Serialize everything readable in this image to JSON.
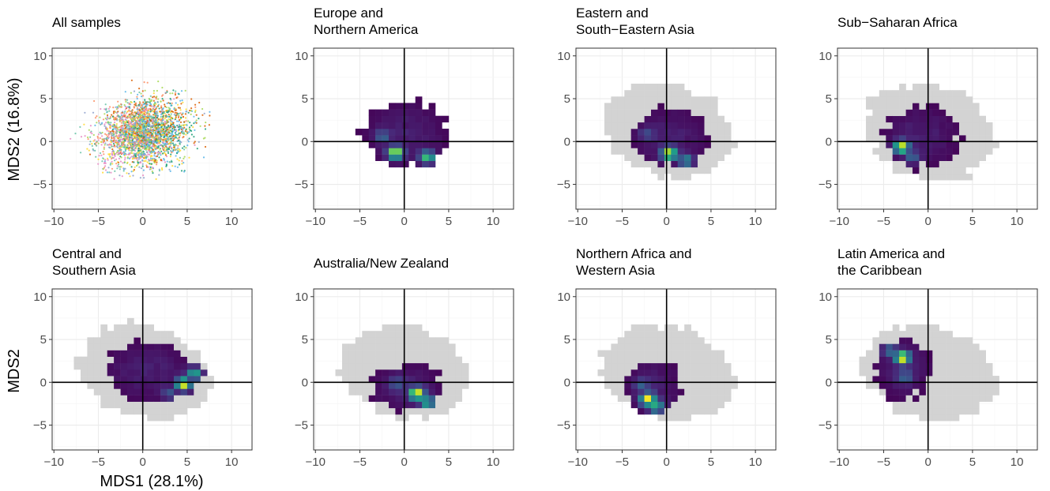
{
  "figure": {
    "y_label_top": "MDS2 (16.8%)",
    "y_label_bottom": "MDS2",
    "x_label_first": "MDS1 (28.1%)"
  },
  "chart_data": [
    {
      "type": "scatter",
      "title_lines": [
        "All samples"
      ],
      "xlim": [
        -10.2,
        12.3
      ],
      "ylim": [
        -7.9,
        10.9
      ],
      "xticks": [
        -10,
        -5,
        0,
        5,
        10
      ],
      "yticks": [
        -5,
        0,
        5,
        10
      ],
      "grid": true,
      "reference_lines": false,
      "series_colors": [
        "#e78ac3",
        "#66c2a5",
        "#fc8d62",
        "#8da0cb",
        "#a6d854",
        "#ffd92f",
        "#56b4e9",
        "#d95f02",
        "#1b9e77"
      ]
    },
    {
      "type": "heatmap",
      "title_lines": [
        "Europe and",
        "Northern America"
      ],
      "xlim": [
        -10.2,
        12.3
      ],
      "ylim": [
        -7.9,
        10.9
      ],
      "xticks": [
        -10,
        -5,
        0,
        5,
        10
      ],
      "yticks": [
        -5,
        0,
        5,
        10
      ],
      "grid": true,
      "reference_lines": true,
      "background_cells": false,
      "hotspots": [
        {
          "x": -1.0,
          "y": -1.3,
          "w": 1.0
        },
        {
          "x": 2.6,
          "y": -1.8,
          "w": 0.85
        },
        {
          "x": -2.5,
          "y": 0.6,
          "w": 0.55
        }
      ],
      "spread": [
        4.2,
        3.3
      ],
      "center": [
        0.2,
        0.9
      ]
    },
    {
      "type": "heatmap",
      "title_lines": [
        "Eastern and",
        "South−Eastern Asia"
      ],
      "xlim": [
        -10.2,
        12.3
      ],
      "ylim": [
        -7.9,
        10.9
      ],
      "xticks": [
        -10,
        -5,
        0,
        5,
        10
      ],
      "yticks": [
        -5,
        0,
        5,
        10
      ],
      "grid": true,
      "reference_lines": true,
      "background_cells": true,
      "hotspots": [
        {
          "x": 0.3,
          "y": -1.4,
          "w": 1.0
        },
        {
          "x": 2.2,
          "y": -2.2,
          "w": 0.7
        },
        {
          "x": -2.2,
          "y": 0.9,
          "w": 0.45
        }
      ],
      "spread": [
        3.8,
        3.0
      ],
      "center": [
        0.3,
        0.5
      ]
    },
    {
      "type": "heatmap",
      "title_lines": [
        "Sub−Saharan Africa"
      ],
      "xlim": [
        -10.2,
        12.3
      ],
      "ylim": [
        -7.9,
        10.9
      ],
      "xticks": [
        -10,
        -5,
        0,
        5,
        10
      ],
      "yticks": [
        -5,
        0,
        5,
        10
      ],
      "grid": true,
      "reference_lines": true,
      "background_cells": true,
      "hotspots": [
        {
          "x": -3.0,
          "y": -0.6,
          "w": 1.0
        },
        {
          "x": -1.8,
          "y": -1.8,
          "w": 0.55
        }
      ],
      "spread": [
        3.7,
        3.1
      ],
      "center": [
        -0.8,
        0.6
      ]
    },
    {
      "type": "heatmap",
      "title_lines": [
        "Central and",
        "Southern Asia"
      ],
      "xlim": [
        -10.2,
        12.3
      ],
      "ylim": [
        -7.9,
        10.9
      ],
      "xticks": [
        -10,
        -5,
        0,
        5,
        10
      ],
      "yticks": [
        -5,
        0,
        5,
        10
      ],
      "grid": true,
      "reference_lines": true,
      "background_cells": true,
      "hotspots": [
        {
          "x": 4.6,
          "y": -0.2,
          "w": 1.0
        },
        {
          "x": 5.8,
          "y": 1.0,
          "w": 0.8
        },
        {
          "x": 3.0,
          "y": -1.3,
          "w": 0.5
        }
      ],
      "spread": [
        4.3,
        3.0
      ],
      "center": [
        0.6,
        1.3
      ]
    },
    {
      "type": "heatmap",
      "title_lines": [
        "Australia/New Zealand"
      ],
      "xlim": [
        -10.2,
        12.3
      ],
      "ylim": [
        -7.9,
        10.9
      ],
      "xticks": [
        -10,
        -5,
        0,
        5,
        10
      ],
      "yticks": [
        -5,
        0,
        5,
        10
      ],
      "grid": true,
      "reference_lines": true,
      "background_cells": true,
      "hotspots": [
        {
          "x": 1.4,
          "y": -1.3,
          "w": 1.0
        },
        {
          "x": 2.6,
          "y": -2.3,
          "w": 0.8
        },
        {
          "x": -0.9,
          "y": -0.1,
          "w": 0.5
        }
      ],
      "spread": [
        3.6,
        2.4
      ],
      "center": [
        0.3,
        -0.6
      ]
    },
    {
      "type": "heatmap",
      "title_lines": [
        "Northern Africa and",
        "Western Asia"
      ],
      "xlim": [
        -10.2,
        12.3
      ],
      "ylim": [
        -7.9,
        10.9
      ],
      "xticks": [
        -10,
        -5,
        0,
        5,
        10
      ],
      "yticks": [
        -5,
        0,
        5,
        10
      ],
      "grid": true,
      "reference_lines": true,
      "background_cells": true,
      "hotspots": [
        {
          "x": -2.1,
          "y": -2.0,
          "w": 1.0
        },
        {
          "x": -1.2,
          "y": -2.8,
          "w": 0.8
        },
        {
          "x": -2.9,
          "y": -0.3,
          "w": 0.5
        }
      ],
      "spread": [
        2.8,
        2.8
      ],
      "center": [
        -1.5,
        -0.6
      ]
    },
    {
      "type": "heatmap",
      "title_lines": [
        "Latin America and",
        "the Caribbean"
      ],
      "xlim": [
        -10.2,
        12.3
      ],
      "ylim": [
        -7.9,
        10.9
      ],
      "xticks": [
        -10,
        -5,
        0,
        5,
        10
      ],
      "yticks": [
        -5,
        0,
        5,
        10
      ],
      "grid": true,
      "reference_lines": true,
      "background_cells": true,
      "hotspots": [
        {
          "x": -2.9,
          "y": 2.9,
          "w": 1.0
        },
        {
          "x": -4.3,
          "y": 3.7,
          "w": 0.6
        },
        {
          "x": -2.6,
          "y": 0.6,
          "w": 0.55
        }
      ],
      "spread": [
        2.8,
        3.1
      ],
      "center": [
        -2.8,
        1.6
      ]
    }
  ]
}
